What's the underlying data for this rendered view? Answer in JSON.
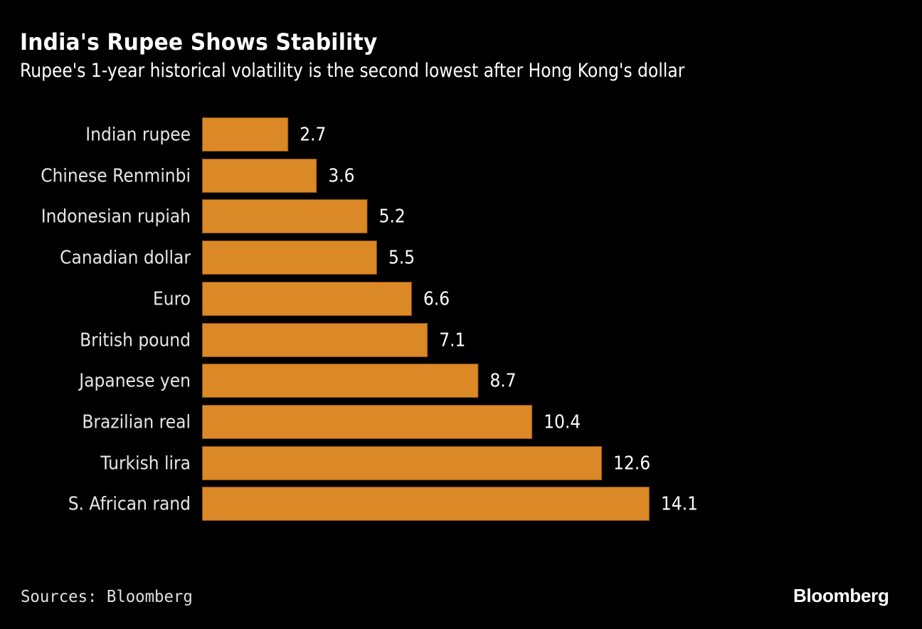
{
  "header": {
    "title": "India's Rupee Shows Stability",
    "subtitle": "Rupee's 1-year historical volatility is the second lowest after Hong Kong's dollar"
  },
  "footer": {
    "source": "Sources: Bloomberg",
    "brand": "Bloomberg"
  },
  "colors": {
    "background": "#000000",
    "bar": "#db8826",
    "text": "#ffffff"
  },
  "chart_data": {
    "type": "bar",
    "orientation": "horizontal",
    "title": "India's Rupee Shows Stability",
    "subtitle": "Rupee's 1-year historical volatility is the second lowest after Hong Kong's dollar",
    "xlabel": "",
    "ylabel": "",
    "categories": [
      "Indian rupee",
      "Chinese Renminbi",
      "Indonesian rupiah",
      "Canadian dollar",
      "Euro",
      "British pound",
      "Japanese yen",
      "Brazilian real",
      "Turkish lira",
      "S. African rand"
    ],
    "values": [
      2.7,
      3.6,
      5.2,
      5.5,
      6.6,
      7.1,
      8.7,
      10.4,
      12.6,
      14.1
    ],
    "value_labels": [
      "2.7",
      "3.6",
      "5.2",
      "5.5",
      "6.6",
      "7.1",
      "8.7",
      "10.4",
      "12.6",
      "14.1"
    ],
    "xlim": [
      0,
      14.1
    ],
    "grid": false,
    "legend": "none",
    "data_labels": true,
    "source": "Sources: Bloomberg"
  }
}
